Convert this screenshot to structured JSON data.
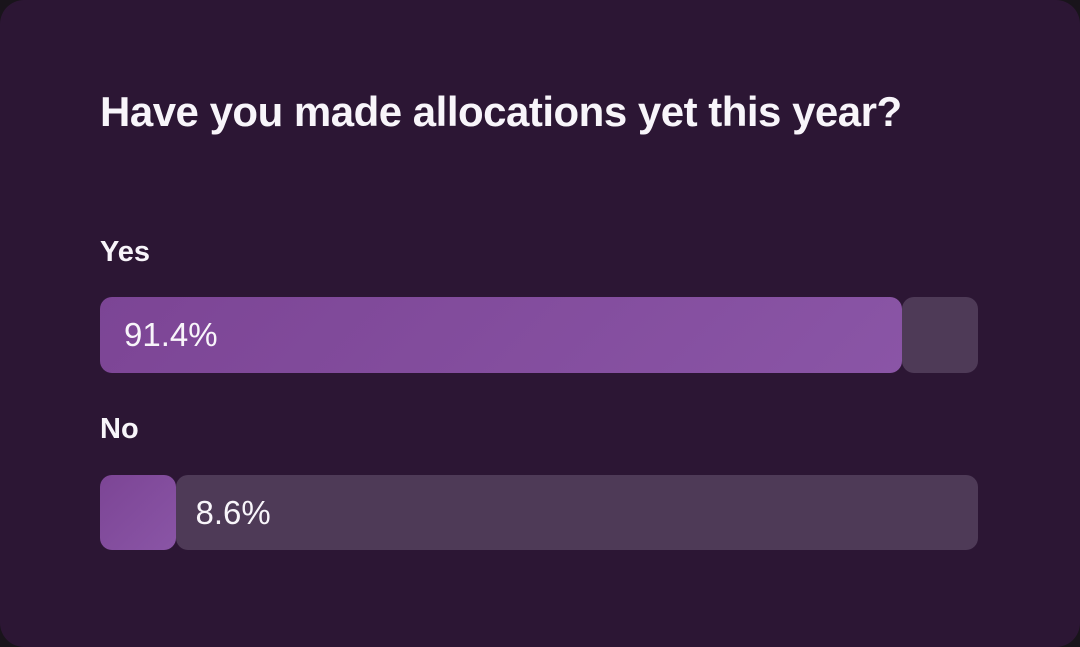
{
  "chart_data": {
    "type": "bar",
    "orientation": "horizontal",
    "title": "Have you made allocations yet this year?",
    "categories": [
      "Yes",
      "No"
    ],
    "values": [
      91.4,
      8.6
    ],
    "value_labels": [
      "91.4%",
      "8.6%"
    ],
    "xlim": [
      0,
      100
    ],
    "grid": false,
    "legend": "none"
  },
  "poll": {
    "title": "Have you made allocations yet this year?",
    "options": [
      {
        "label": "Yes",
        "pct": 91.4,
        "pct_label": "91.4%"
      },
      {
        "label": "No",
        "pct": 8.6,
        "pct_label": "8.6%"
      }
    ]
  },
  "colors": {
    "page_background": "#19141B",
    "card_background": "#2C1634",
    "bar_fill": "#7E4A99",
    "bar_track": "#4E3A57",
    "text": "#F8F5FA"
  }
}
